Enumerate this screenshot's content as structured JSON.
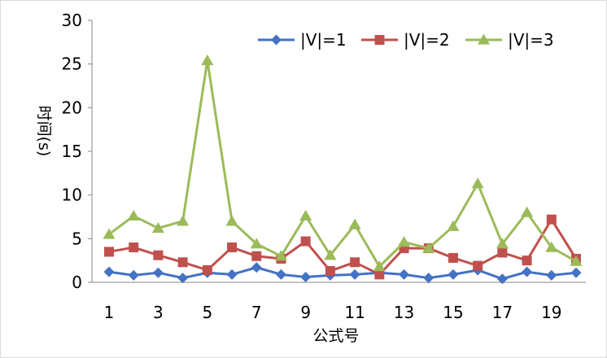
{
  "chart_data": {
    "type": "line",
    "title": "",
    "xlabel": "公式号",
    "ylabel": "时间(s)",
    "x": [
      1,
      2,
      3,
      4,
      5,
      6,
      7,
      8,
      9,
      10,
      11,
      12,
      13,
      14,
      15,
      16,
      17,
      18,
      19,
      20
    ],
    "x_tick_labels": [
      "1",
      "3",
      "5",
      "7",
      "9",
      "11",
      "13",
      "15",
      "17",
      "19"
    ],
    "y_tick_labels": [
      "0",
      "5",
      "10",
      "15",
      "20",
      "25",
      "30"
    ],
    "ylim": [
      0,
      30
    ],
    "grid": false,
    "legend_position": "top-right",
    "series": [
      {
        "name": "|V|=1",
        "color": "#4472C4",
        "marker": "diamond",
        "values": [
          1.2,
          0.8,
          1.1,
          0.5,
          1.1,
          0.9,
          1.7,
          0.9,
          0.6,
          0.8,
          0.9,
          1.1,
          0.9,
          0.5,
          0.9,
          1.4,
          0.4,
          1.2,
          0.8,
          1.1
        ]
      },
      {
        "name": "|V|=2",
        "color": "#C0504D",
        "marker": "square",
        "values": [
          3.5,
          4.0,
          3.1,
          2.3,
          1.4,
          4.0,
          3.0,
          2.7,
          4.7,
          1.3,
          2.3,
          0.9,
          3.9,
          3.9,
          2.8,
          1.9,
          3.4,
          2.5,
          7.2,
          2.7
        ]
      },
      {
        "name": "|V|=3",
        "color": "#9BBB59",
        "marker": "triangle",
        "values": [
          5.5,
          7.6,
          6.2,
          7.0,
          25.4,
          7.0,
          4.4,
          3.0,
          7.6,
          3.1,
          6.6,
          1.8,
          4.6,
          3.9,
          6.4,
          11.3,
          4.4,
          8.0,
          4.0,
          2.4
        ]
      }
    ]
  }
}
